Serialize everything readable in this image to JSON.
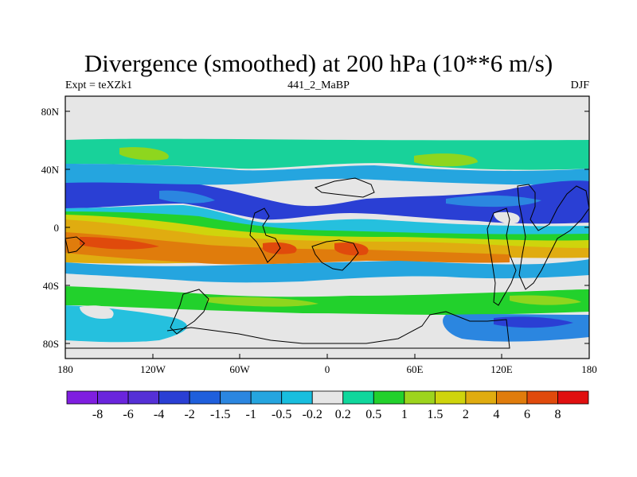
{
  "title": "Divergence (smoothed) at 200 hPa (10**6 m/s)",
  "left_label": "Expt = teXZk1",
  "center_label": "441_2_MaBP",
  "right_label": "DJF",
  "lat_ticks": [
    "80N",
    "40N",
    "0",
    "40S",
    "80S"
  ],
  "lon_ticks": [
    "180",
    "120W",
    "60W",
    "0",
    "60E",
    "120E",
    "180"
  ],
  "colorbar": {
    "colors": [
      "#7f1ee0",
      "#6a25dd",
      "#5530d6",
      "#2a3fd4",
      "#1f5fdc",
      "#2b86e0",
      "#25a5df",
      "#18bede",
      "#e6e6e6",
      "#10d79c",
      "#22d12c",
      "#9dd41d",
      "#cfd40c",
      "#e0ac10",
      "#e07c0c",
      "#e04a0c",
      "#e01010"
    ],
    "labels": [
      "-8",
      "-6",
      "-4",
      "-2",
      "-1.5",
      "-1",
      "-0.5",
      "-0.2",
      "0.2",
      "0.5",
      "1",
      "1.5",
      "2",
      "4",
      "6",
      "8"
    ]
  }
}
